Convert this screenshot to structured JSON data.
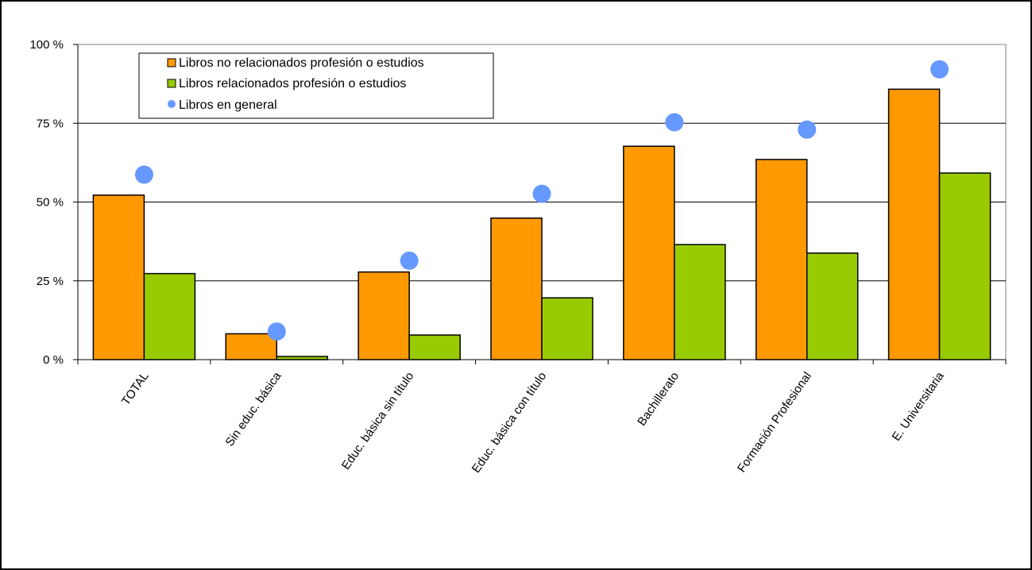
{
  "chart_data": {
    "type": "bar",
    "categories": [
      "TOTAL",
      "Sin educ. básica",
      "Educ. básica sin título",
      "Educ. básica con título",
      "Bachillerato",
      "Formación Profesional",
      "E. Universitaria"
    ],
    "series": [
      {
        "name": "Libros no relacionados profesión o estudios",
        "kind": "bar",
        "color": "#FF9900",
        "values": [
          52.2,
          8.2,
          27.8,
          44.9,
          67.7,
          63.5,
          85.8
        ]
      },
      {
        "name": "Libros relacionados profesión o estudios",
        "kind": "bar",
        "color": "#99CC00",
        "values": [
          27.3,
          1.0,
          7.8,
          19.6,
          36.5,
          33.8,
          59.2
        ]
      },
      {
        "name": "Libros en general",
        "kind": "marker",
        "color": "#6699FF",
        "values": [
          58.7,
          8.9,
          31.4,
          52.6,
          75.3,
          73.0,
          92.1
        ]
      }
    ],
    "title": "",
    "xlabel": "",
    "ylabel": "",
    "ylim": [
      0,
      100
    ],
    "yticks": [
      "0 %",
      "25 %",
      "50 %",
      "75 %",
      "100 %"
    ],
    "ytick_values": [
      0,
      25,
      50,
      75,
      100
    ],
    "grid": true,
    "legend_position": "top-left"
  }
}
